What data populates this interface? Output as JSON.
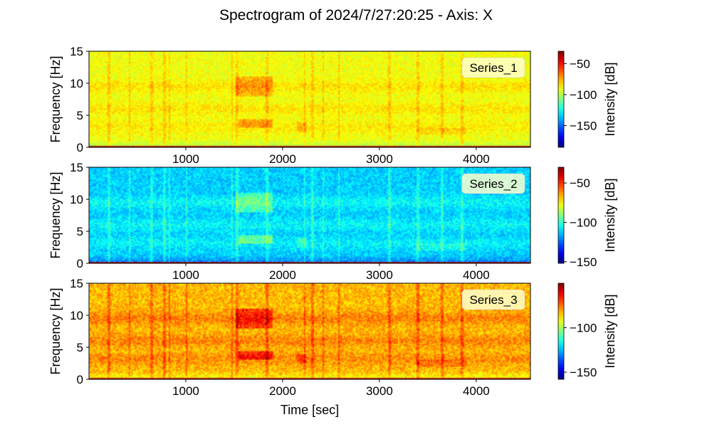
{
  "chart_data": {
    "type": "heatmap",
    "title": "Spectrogram of 2024/7/27:20:25 - Axis: X",
    "xlabel": "Time [sec]",
    "ylabel": "Frequency [Hz]",
    "colorbar_label": "Intensity [dB]",
    "colormap": "jet",
    "xlim": [
      0,
      4560
    ],
    "ylim": [
      0,
      15
    ],
    "x_ticks": [
      1000,
      2000,
      3000,
      4000
    ],
    "y_ticks": [
      0,
      5,
      10,
      15
    ],
    "panels": [
      {
        "name": "Series_1",
        "clim": [
          -185,
          -30
        ],
        "colorbar_ticks": [
          -50,
          -100,
          -150
        ],
        "background_level_db": -90
      },
      {
        "name": "Series_2",
        "clim": [
          -152,
          -30
        ],
        "colorbar_ticks": [
          -50,
          -100,
          -150
        ],
        "background_level_db": -112
      },
      {
        "name": "Series_3",
        "clim": [
          -158,
          -50
        ],
        "colorbar_ticks": [
          -100,
          -150
        ],
        "background_level_db": -83
      }
    ],
    "horizontal_bands_hz": [
      {
        "freq": 9.5,
        "strength": 0.6
      },
      {
        "freq": 6.0,
        "strength": 0.55
      },
      {
        "freq": 3.2,
        "strength": 0.45
      }
    ],
    "bursts": [
      {
        "t_start": 1520,
        "t_end": 1900,
        "freq_low": 8,
        "freq_high": 11,
        "boost_db": 14
      },
      {
        "t_start": 1550,
        "t_end": 1900,
        "freq_low": 3,
        "freq_high": 4.5,
        "boost_db": 16
      },
      {
        "t_start": 2150,
        "t_end": 2250,
        "freq_low": 2.5,
        "freq_high": 4,
        "boost_db": 10
      },
      {
        "t_start": 3380,
        "t_end": 3900,
        "freq_low": 2,
        "freq_high": 3,
        "boost_db": 6
      }
    ],
    "vertical_streaks_sec": [
      210,
      420,
      650,
      780,
      830,
      1010,
      1480,
      1530,
      1840,
      2230,
      2310,
      2420,
      2580,
      3100,
      3400,
      3650,
      3850
    ]
  }
}
